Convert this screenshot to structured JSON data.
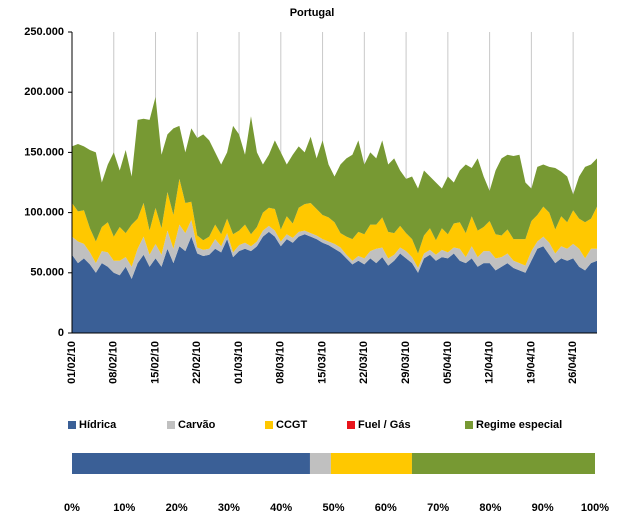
{
  "chart_data": [
    {
      "type": "stacked-area",
      "title": "Portugal",
      "categories": [
        "01/02/10",
        null,
        null,
        null,
        null,
        null,
        null,
        "08/02/10",
        null,
        null,
        null,
        null,
        null,
        null,
        "15/02/10",
        null,
        null,
        null,
        null,
        null,
        null,
        "22/02/10",
        null,
        null,
        null,
        null,
        null,
        null,
        "01/03/10",
        null,
        null,
        null,
        null,
        null,
        null,
        "08/03/10",
        null,
        null,
        null,
        null,
        null,
        null,
        "15/03/10",
        null,
        null,
        null,
        null,
        null,
        null,
        "22/03/10",
        null,
        null,
        null,
        null,
        null,
        null,
        "29/03/10",
        null,
        null,
        null,
        null,
        null,
        null,
        "05/04/10",
        null,
        null,
        null,
        null,
        null,
        null,
        "12/04/10",
        null,
        null,
        null,
        null,
        null,
        null,
        "19/04/10",
        null,
        null,
        null,
        null,
        null,
        null,
        "26/04/10",
        null,
        null,
        null,
        null
      ],
      "series": [
        {
          "name": "Hídrica",
          "color": "#3a5f96",
          "values": [
            65000,
            58000,
            62000,
            57000,
            50000,
            58000,
            55000,
            50000,
            48000,
            55000,
            45000,
            58000,
            65000,
            55000,
            62000,
            55000,
            70000,
            58000,
            72000,
            68000,
            80000,
            66000,
            64000,
            65000,
            70000,
            67000,
            78000,
            63000,
            68000,
            70000,
            68000,
            72000,
            80000,
            84000,
            80000,
            72000,
            78000,
            75000,
            80000,
            82000,
            80000,
            78000,
            75000,
            73000,
            70000,
            67000,
            62000,
            57000,
            60000,
            57000,
            62000,
            58000,
            63000,
            56000,
            60000,
            66000,
            62000,
            58000,
            50000,
            62000,
            65000,
            60000,
            63000,
            62000,
            66000,
            60000,
            58000,
            62000,
            55000,
            58000,
            58000,
            52000,
            55000,
            58000,
            54000,
            52000,
            50000,
            60000,
            70000,
            72000,
            65000,
            58000,
            62000,
            60000,
            62000,
            55000,
            52000,
            58000,
            60000
          ]
        },
        {
          "name": "Carvão",
          "color": "#c0c0c0",
          "values": [
            15000,
            18000,
            12000,
            10000,
            8000,
            10000,
            12000,
            10000,
            12000,
            8000,
            10000,
            12000,
            15000,
            10000,
            12000,
            10000,
            15000,
            12000,
            18000,
            15000,
            14000,
            5000,
            5000,
            5000,
            8000,
            5000,
            5000,
            4000,
            5000,
            5000,
            4000,
            4000,
            5000,
            5000,
            5000,
            4000,
            4000,
            4000,
            4000,
            3000,
            3000,
            3000,
            3000,
            3000,
            4000,
            4000,
            3000,
            3000,
            4000,
            5000,
            6000,
            12000,
            8000,
            6000,
            5000,
            5000,
            6000,
            5000,
            4000,
            4000,
            4000,
            5000,
            6000,
            5000,
            5000,
            10000,
            5000,
            10000,
            8000,
            10000,
            10000,
            10000,
            8000,
            8000,
            6000,
            6000,
            6000,
            8000,
            6000,
            8000,
            10000,
            8000,
            10000,
            10000,
            12000,
            15000,
            10000,
            12000,
            10000
          ]
        },
        {
          "name": "CCGT",
          "color": "#ffc800",
          "values": [
            28000,
            25000,
            28000,
            20000,
            18000,
            20000,
            25000,
            20000,
            28000,
            20000,
            35000,
            25000,
            28000,
            20000,
            30000,
            22000,
            32000,
            28000,
            38000,
            25000,
            15000,
            10000,
            8000,
            10000,
            12000,
            10000,
            12000,
            15000,
            12000,
            15000,
            10000,
            12000,
            15000,
            15000,
            18000,
            10000,
            15000,
            12000,
            20000,
            22000,
            25000,
            22000,
            20000,
            20000,
            18000,
            12000,
            15000,
            18000,
            20000,
            20000,
            22000,
            20000,
            25000,
            22000,
            18000,
            18000,
            15000,
            15000,
            12000,
            15000,
            18000,
            12000,
            18000,
            15000,
            20000,
            22000,
            20000,
            25000,
            22000,
            20000,
            25000,
            20000,
            18000,
            20000,
            18000,
            20000,
            22000,
            25000,
            22000,
            25000,
            25000,
            20000,
            25000,
            22000,
            28000,
            25000,
            30000,
            25000,
            35000
          ]
        },
        {
          "name": "Fuel / Gás",
          "color": "#e8141b",
          "values": [
            0,
            0,
            0,
            0,
            0,
            0,
            0,
            0,
            0,
            0,
            0,
            0,
            0,
            0,
            0,
            0,
            0,
            0,
            0,
            0,
            0,
            0,
            0,
            0,
            0,
            0,
            0,
            0,
            0,
            0,
            0,
            0,
            0,
            0,
            0,
            0,
            0,
            0,
            0,
            0,
            0,
            0,
            0,
            0,
            0,
            0,
            0,
            0,
            0,
            0,
            0,
            0,
            0,
            0,
            0,
            0,
            0,
            0,
            0,
            0,
            0,
            0,
            0,
            0,
            0,
            0,
            0,
            0,
            0,
            0,
            0,
            0,
            0,
            0,
            0,
            0,
            0,
            0,
            0,
            0,
            0,
            0,
            0,
            0,
            0,
            0,
            0,
            0,
            0
          ]
        },
        {
          "name": "Regime especial",
          "color": "#779933",
          "values": [
            47000,
            56000,
            53000,
            65000,
            74000,
            37000,
            48000,
            70000,
            47000,
            69000,
            40000,
            82000,
            70000,
            92000,
            92000,
            61000,
            48000,
            72000,
            44000,
            42000,
            61000,
            81000,
            88000,
            80000,
            60000,
            58000,
            55000,
            90000,
            80000,
            58000,
            98000,
            62000,
            40000,
            44000,
            57000,
            64000,
            43000,
            57000,
            51000,
            43000,
            55000,
            42000,
            62000,
            44000,
            38000,
            57000,
            65000,
            70000,
            76000,
            58000,
            60000,
            55000,
            64000,
            56000,
            62000,
            46000,
            45000,
            52000,
            54000,
            54000,
            43000,
            48000,
            33000,
            48000,
            34000,
            43000,
            57000,
            40000,
            60000,
            42000,
            25000,
            53000,
            64000,
            62000,
            69000,
            70000,
            47000,
            27000,
            40000,
            35000,
            38000,
            51000,
            37000,
            38000,
            13000,
            35000,
            46000,
            45000,
            40000
          ]
        }
      ],
      "ylim": [
        0,
        250000
      ],
      "yticks": [
        {
          "value": 0,
          "label": "0"
        },
        {
          "value": 50000,
          "label": "50.000"
        },
        {
          "value": 100000,
          "label": "100.000"
        },
        {
          "value": 150000,
          "label": "150.000"
        },
        {
          "value": 200000,
          "label": "200.000"
        },
        {
          "value": 250000,
          "label": "250.000"
        }
      ],
      "xgrid": true,
      "legend": "bottom"
    },
    {
      "type": "share-bar",
      "values": [
        45.5,
        4,
        15.5,
        0,
        35
      ],
      "xlim": [
        0,
        100
      ],
      "xticks": [
        {
          "value": 0,
          "label": "0%"
        },
        {
          "value": 10,
          "label": "10%"
        },
        {
          "value": 20,
          "label": "20%"
        },
        {
          "value": 30,
          "label": "30%"
        },
        {
          "value": 40,
          "label": "40%"
        },
        {
          "value": 50,
          "label": "50%"
        },
        {
          "value": 60,
          "label": "60%"
        },
        {
          "value": 70,
          "label": "70%"
        },
        {
          "value": 80,
          "label": "80%"
        },
        {
          "value": 90,
          "label": "90%"
        },
        {
          "value": 100,
          "label": "100%"
        }
      ]
    }
  ]
}
